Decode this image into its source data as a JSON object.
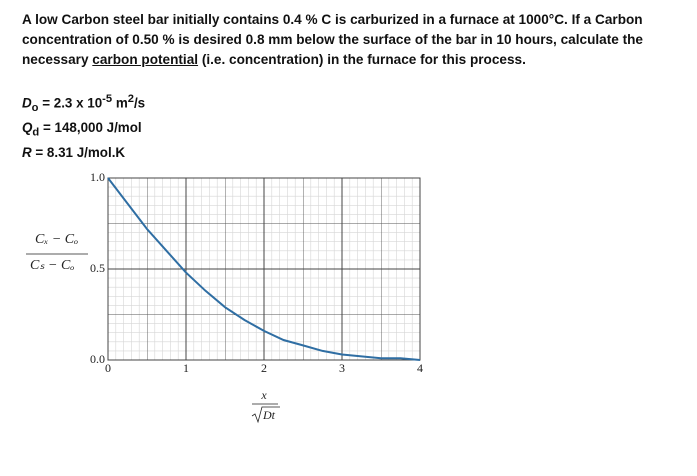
{
  "problem": {
    "text": [
      "A low Carbon steel bar initially contains 0.4 % C is carburized in a furnace at 1000°C. If a Carbon concentration of 0.50 % is desired 0.8 mm below the surface of the bar in 10 hours, calculate the necessary ",
      "carbon potential",
      " (i.e. concentration) in the furnace for this process."
    ]
  },
  "givens": [
    [
      "D",
      "o",
      " = 2.3 x 10",
      "-5",
      " m",
      "2",
      "/s"
    ],
    [
      "Q",
      "d",
      " = 148,000 J/mol"
    ],
    [
      "R",
      " = 8.31 J/mol.K"
    ]
  ],
  "chart_data": {
    "type": "line",
    "y_label": {
      "numerator": "Cₓ − Cₒ",
      "denominator": "Cₛ − Cₒ"
    },
    "x_label": {
      "numerator": "x",
      "denominator": "Dt"
    },
    "x": [
      0,
      0.25,
      0.5,
      0.75,
      1,
      1.25,
      1.5,
      1.75,
      2,
      2.25,
      2.5,
      2.75,
      3,
      3.25,
      3.5,
      3.75,
      4
    ],
    "series": [
      {
        "color": "#2f6ea3",
        "values": [
          1.0,
          0.86,
          0.72,
          0.6,
          0.48,
          0.38,
          0.29,
          0.22,
          0.16,
          0.11,
          0.08,
          0.05,
          0.03,
          0.02,
          0.01,
          0.01,
          0.0
        ]
      }
    ],
    "xlim": [
      0,
      4
    ],
    "ylim": [
      0,
      1
    ],
    "xticks": [
      0,
      1,
      2,
      3,
      4
    ],
    "yticks": [
      {
        "value": 0,
        "label": "0.0"
      },
      {
        "value": 0.5,
        "label": "0.5"
      },
      {
        "value": 1,
        "label": "1.0"
      }
    ],
    "grid": true
  }
}
